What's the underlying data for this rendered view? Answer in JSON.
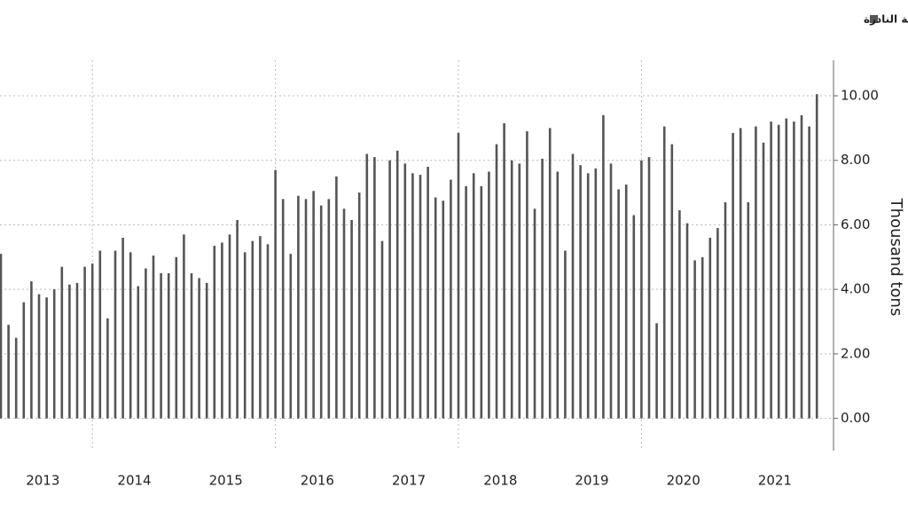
{
  "chart_data": {
    "type": "bar",
    "legend_label": "الصادرات الصينية من العناصر الأرضية النادرة",
    "y_label": "Thousand tons",
    "color": "#555555",
    "categories": [
      "2013",
      null,
      null,
      null,
      null,
      null,
      null,
      null,
      null,
      null,
      null,
      null,
      "2014",
      null,
      null,
      null,
      null,
      null,
      null,
      null,
      null,
      null,
      null,
      null,
      "2015",
      null,
      null,
      null,
      null,
      null,
      null,
      null,
      null,
      null,
      null,
      null,
      "2016",
      null,
      null,
      null,
      null,
      null,
      null,
      null,
      null,
      null,
      null,
      null,
      "2017",
      null,
      null,
      null,
      null,
      null,
      null,
      null,
      null,
      null,
      null,
      null,
      "2018",
      null,
      null,
      null,
      null,
      null,
      null,
      null,
      null,
      null,
      null,
      null,
      "2019",
      null,
      null,
      null,
      null,
      null,
      null,
      null,
      null,
      null,
      null,
      null,
      "2020",
      null,
      null,
      null,
      null,
      null,
      null,
      null,
      null,
      null,
      null,
      null,
      "2021",
      null,
      null,
      null,
      null,
      null,
      null,
      null,
      null,
      null,
      null,
      null
    ],
    "values": [
      5.1,
      2.9,
      2.5,
      3.6,
      4.25,
      3.85,
      3.75,
      4.0,
      4.7,
      4.15,
      4.2,
      4.7,
      4.8,
      5.2,
      3.1,
      5.2,
      5.6,
      5.15,
      4.1,
      4.65,
      5.05,
      4.5,
      4.5,
      5.0,
      5.7,
      4.5,
      4.35,
      4.2,
      5.35,
      5.45,
      5.7,
      6.15,
      5.15,
      5.5,
      5.65,
      5.4,
      7.7,
      6.8,
      5.1,
      6.9,
      6.8,
      7.05,
      6.6,
      6.8,
      7.5,
      6.5,
      6.15,
      7.0,
      8.2,
      8.1,
      5.5,
      8.0,
      8.3,
      7.9,
      7.6,
      7.55,
      7.8,
      6.85,
      6.75,
      7.4,
      8.85,
      7.2,
      7.6,
      7.2,
      7.65,
      8.5,
      9.15,
      8.0,
      7.9,
      8.9,
      6.5,
      8.05,
      9.0,
      7.65,
      5.2,
      8.2,
      7.85,
      7.6,
      7.75,
      9.4,
      7.9,
      7.1,
      7.25,
      6.3,
      8.0,
      8.1,
      2.95,
      9.05,
      8.5,
      6.45,
      6.05,
      4.9,
      5.0,
      5.6,
      5.9,
      6.7,
      8.85,
      9.0,
      6.7,
      9.05,
      8.55,
      9.2,
      9.1,
      9.3,
      9.2,
      9.4,
      9.05,
      10.05
    ],
    "ylim": [
      -1,
      11.1
    ],
    "yticks": [
      {
        "value": 0,
        "label": "0.00"
      },
      {
        "value": 2,
        "label": "2.00"
      },
      {
        "value": 4,
        "label": "4.00"
      },
      {
        "value": 6,
        "label": "6.00"
      },
      {
        "value": 8,
        "label": "8.00"
      },
      {
        "value": 10,
        "label": "10.00"
      }
    ],
    "grid": true
  }
}
